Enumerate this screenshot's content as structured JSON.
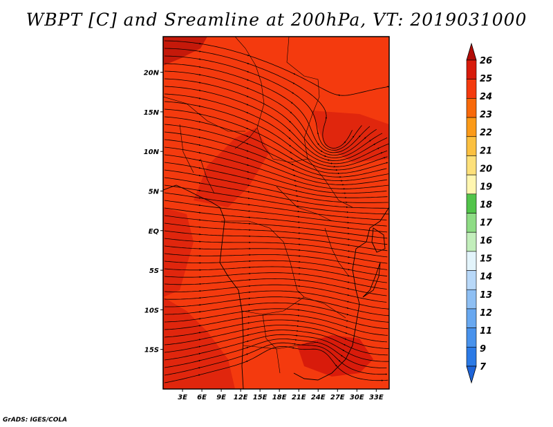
{
  "title": "WBPT [C] and Sreamline at 200hPa, VT: 2019031000",
  "credit": "GrADS: IGES/COLA",
  "map": {
    "lon_range": [
      0,
      35
    ],
    "lat_range": [
      -20,
      24.5
    ],
    "lat_ticks": [
      "20N",
      "15N",
      "10N",
      "5N",
      "EQ",
      "5S",
      "10S",
      "15S"
    ],
    "lon_ticks": [
      "3E",
      "6E",
      "9E",
      "12E",
      "15E",
      "18E",
      "21E",
      "24E",
      "27E",
      "30E",
      "33E"
    ],
    "field_colors": {
      "base": "#f43a0e",
      "warm": "#e0260d",
      "hot": "#c5190a"
    }
  },
  "colorbar": {
    "labels": [
      "7",
      "9",
      "11",
      "12",
      "13",
      "14",
      "15",
      "16",
      "17",
      "18",
      "19",
      "20",
      "21",
      "22",
      "23",
      "24",
      "25",
      "26"
    ],
    "colors": [
      "#1e64d8",
      "#2b7ae6",
      "#4892ec",
      "#68a8f0",
      "#8ebff3",
      "#b8d8f8",
      "#e3f4fb",
      "#c2eebb",
      "#8edc85",
      "#52c44a",
      "#fff6b0",
      "#fde07a",
      "#fbc040",
      "#fb9a18",
      "#f8690a",
      "#f43a0e",
      "#d81b0b",
      "#b20c07"
    ]
  }
}
